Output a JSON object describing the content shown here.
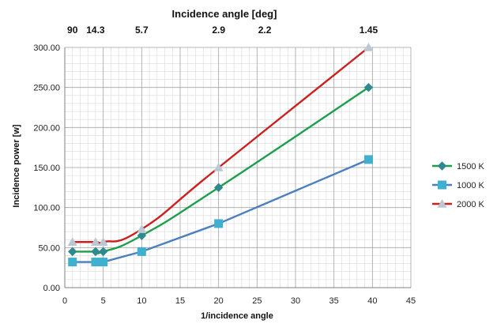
{
  "chart_data": {
    "type": "scatter",
    "title": "",
    "top_axis": {
      "label": "Incidence angle [deg]",
      "ticks": [
        {
          "x": 1,
          "label": "90"
        },
        {
          "x": 4,
          "label": "14.3"
        },
        {
          "x": 10,
          "label": "5.7"
        },
        {
          "x": 20,
          "label": "2.9"
        },
        {
          "x": 26,
          "label": "2.2"
        },
        {
          "x": 39.5,
          "label": "1.45"
        }
      ]
    },
    "xlabel": "1/incidence angle",
    "ylabel": "Incidence power [w]",
    "xlim": [
      0,
      45
    ],
    "ylim": [
      0,
      300
    ],
    "xticks": [
      0,
      5,
      10,
      15,
      20,
      25,
      30,
      35,
      40,
      45
    ],
    "yticks": [
      "0.00",
      "50.00",
      "100.00",
      "150.00",
      "200.00",
      "250.00",
      "300.00"
    ],
    "grid": true,
    "legend_position": "right",
    "series": [
      {
        "name": "1500 K",
        "marker": "diamond",
        "line_color": "#1aa04a",
        "marker_color": "#2e8a8f",
        "x": [
          1,
          4,
          5,
          10,
          20,
          39.5
        ],
        "y": [
          45,
          45,
          45,
          65,
          125,
          250
        ]
      },
      {
        "name": "1000 K",
        "marker": "square",
        "line_color": "#4a7fc0",
        "marker_color": "#3fb0cf",
        "x": [
          1,
          4,
          5,
          10,
          20,
          39.5
        ],
        "y": [
          32,
          32,
          32,
          45,
          80,
          160
        ]
      },
      {
        "name": "2000 K",
        "marker": "triangle",
        "line_color": "#cc1f1f",
        "marker_color": "#b9c8d4",
        "x": [
          1,
          4,
          5,
          10,
          20,
          39.5
        ],
        "y": [
          57,
          57,
          57,
          73,
          150,
          300
        ]
      }
    ]
  }
}
